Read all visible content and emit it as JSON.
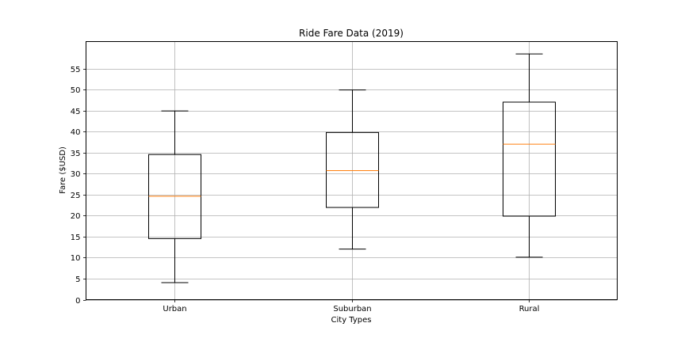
{
  "chart_data": {
    "type": "box",
    "title": "Ride Fare Data (2019)",
    "xlabel": "City Types",
    "ylabel": "Fare ($USD)",
    "categories": [
      "Urban",
      "Suburban",
      "Rural"
    ],
    "boxes": [
      {
        "category": "Urban",
        "whisker_low": 4.05,
        "q1": 14.55,
        "median": 24.64,
        "q3": 34.58,
        "whisker_high": 44.97
      },
      {
        "category": "Suburban",
        "whisker_low": 12.05,
        "q1": 21.97,
        "median": 30.75,
        "q3": 39.83,
        "whisker_high": 49.96
      },
      {
        "category": "Rural",
        "whisker_low": 10.11,
        "q1": 19.9,
        "median": 37.05,
        "q3": 47.07,
        "whisker_high": 58.55
      }
    ],
    "yticks": [
      0,
      5,
      10,
      15,
      20,
      25,
      30,
      35,
      40,
      45,
      50,
      55
    ],
    "ylim": [
      0,
      61.5
    ],
    "grid": true,
    "colors": {
      "box": "#000000",
      "median": "#ff7f0e",
      "grid": "#b0b0b0"
    }
  }
}
